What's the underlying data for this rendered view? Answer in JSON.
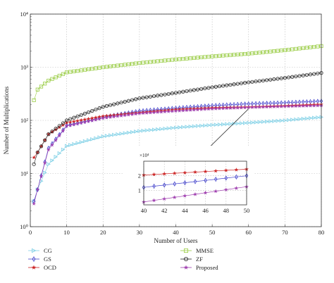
{
  "chart_data": {
    "type": "line",
    "xlabel": "Number of Users",
    "ylabel": "Number of Multiplications",
    "xlim": [
      0,
      80
    ],
    "ylim": [
      1,
      10000
    ],
    "yscale": "log",
    "grid": true,
    "legend_position": "below",
    "x_ticks": [
      0,
      10,
      20,
      30,
      40,
      50,
      60,
      70,
      80
    ],
    "x_tick_labels": [
      "0",
      "10",
      "20",
      "30",
      "40",
      "50",
      "60",
      "70",
      "80"
    ],
    "y_ticks": [
      1,
      10,
      100,
      1000,
      10000
    ],
    "y_tick_labels": [
      "10⁰",
      "10¹",
      "10²",
      "10³",
      "10⁴"
    ],
    "series": [
      {
        "name": "CG",
        "color": "#7fd0e6",
        "marker": "triangle-right",
        "points": [
          [
            1,
            3
          ],
          [
            2,
            5
          ],
          [
            5,
            15
          ],
          [
            10,
            33
          ],
          [
            20,
            50
          ],
          [
            30,
            63
          ],
          [
            40,
            73
          ],
          [
            50,
            82
          ],
          [
            60,
            90
          ],
          [
            70,
            100
          ],
          [
            80,
            115
          ]
        ]
      },
      {
        "name": "GS",
        "color": "#4444cc",
        "marker": "diamond",
        "points": [
          [
            1,
            3
          ],
          [
            2,
            5
          ],
          [
            5,
            30
          ],
          [
            10,
            80
          ],
          [
            20,
            115
          ],
          [
            30,
            150
          ],
          [
            40,
            170
          ],
          [
            50,
            190
          ],
          [
            60,
            205
          ],
          [
            70,
            215
          ],
          [
            80,
            230
          ]
        ]
      },
      {
        "name": "OCD",
        "color": "#cc2222",
        "marker": "star",
        "points": [
          [
            1,
            20
          ],
          [
            2,
            25
          ],
          [
            5,
            55
          ],
          [
            10,
            90
          ],
          [
            20,
            120
          ],
          [
            30,
            140
          ],
          [
            40,
            160
          ],
          [
            50,
            172
          ],
          [
            60,
            178
          ],
          [
            70,
            188
          ],
          [
            80,
            200
          ]
        ]
      },
      {
        "name": "MMSE",
        "color": "#99cc44",
        "marker": "square",
        "points": [
          [
            1,
            240
          ],
          [
            2,
            380
          ],
          [
            5,
            560
          ],
          [
            10,
            800
          ],
          [
            20,
            1000
          ],
          [
            30,
            1200
          ],
          [
            40,
            1400
          ],
          [
            50,
            1600
          ],
          [
            60,
            1800
          ],
          [
            70,
            2100
          ],
          [
            80,
            2500
          ]
        ]
      },
      {
        "name": "ZF",
        "color": "#222222",
        "marker": "circle",
        "points": [
          [
            1,
            15
          ],
          [
            2,
            25
          ],
          [
            5,
            55
          ],
          [
            10,
            100
          ],
          [
            20,
            180
          ],
          [
            30,
            260
          ],
          [
            40,
            330
          ],
          [
            50,
            420
          ],
          [
            60,
            520
          ],
          [
            70,
            630
          ],
          [
            80,
            780
          ]
        ]
      },
      {
        "name": "Proposed",
        "color": "#a040b0",
        "marker": "star",
        "points": [
          [
            1,
            2.7
          ],
          [
            2,
            5
          ],
          [
            5,
            28
          ],
          [
            10,
            78
          ],
          [
            20,
            110
          ],
          [
            30,
            135
          ],
          [
            40,
            150
          ],
          [
            50,
            165
          ],
          [
            60,
            175
          ],
          [
            70,
            183
          ],
          [
            80,
            190
          ]
        ]
      }
    ],
    "inset": {
      "xlim": [
        40,
        50
      ],
      "ylim": [
        0,
        3
      ],
      "y_exponent_label": "×10⁴",
      "x_ticks": [
        40,
        42,
        44,
        46,
        48,
        50
      ],
      "x_tick_labels": [
        "40",
        "42",
        "44",
        "46",
        "48",
        "50"
      ],
      "y_ticks": [
        1,
        2
      ],
      "y_tick_labels": [
        "1",
        "2"
      ],
      "series": [
        {
          "name": "OCD",
          "color": "#cc2222",
          "marker": "star",
          "points": [
            [
              40,
              2.05
            ],
            [
              50,
              2.45
            ]
          ]
        },
        {
          "name": "GS",
          "color": "#4444cc",
          "marker": "diamond",
          "points": [
            [
              40,
              1.2
            ],
            [
              50,
              2.0
            ]
          ]
        },
        {
          "name": "Proposed",
          "color": "#a040b0",
          "marker": "star",
          "points": [
            [
              40,
              0.2
            ],
            [
              50,
              1.25
            ]
          ]
        }
      ]
    }
  }
}
